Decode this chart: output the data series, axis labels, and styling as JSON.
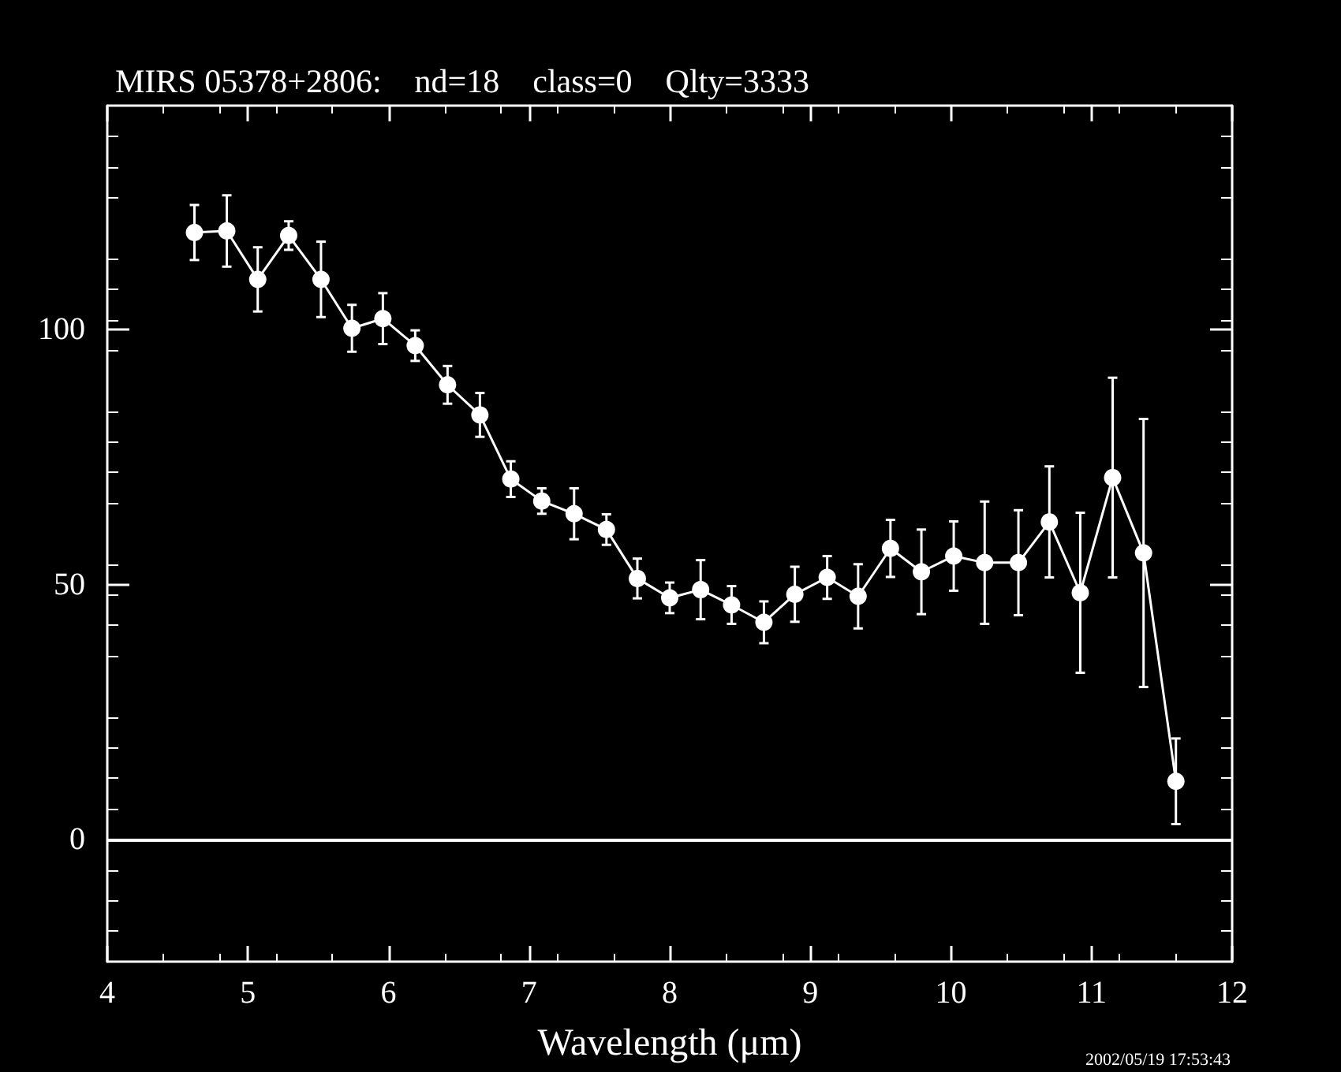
{
  "chart_data": {
    "type": "line",
    "title": "MIRS 05378+2806:    nd=18    class=0    Qlty=3333",
    "xlabel": "Wavelength (μm)",
    "annotations": [
      "2002/05/19 17:53:43"
    ],
    "x": [
      4.62,
      4.85,
      5.07,
      5.29,
      5.52,
      5.74,
      5.96,
      6.19,
      6.42,
      6.65,
      6.87,
      7.09,
      7.32,
      7.55,
      7.77,
      8.0,
      8.22,
      8.44,
      8.67,
      8.89,
      9.12,
      9.34,
      9.57,
      9.79,
      10.02,
      10.24,
      10.48,
      10.7,
      10.92,
      11.15,
      11.37,
      11.6
    ],
    "series": [
      {
        "color": "#ffffff",
        "values": [
          119.1,
          119.4,
          109.9,
          118.5,
          109.9,
          100.3,
          102.2,
          96.9,
          89.2,
          83.3,
          70.7,
          66.4,
          63.9,
          60.8,
          51.2,
          47.4,
          49.0,
          46.0,
          42.6,
          48.1,
          51.4,
          47.7,
          57.1,
          52.5,
          55.6,
          54.3,
          54.3,
          62.3,
          48.4,
          71.0,
          56.2,
          11.4
        ],
        "errors": [
          5.4,
          7,
          6.3,
          2.8,
          7.4,
          4.6,
          5,
          3,
          3.7,
          4.3,
          3.5,
          2.5,
          5,
          3,
          3.9,
          3,
          5.8,
          3.7,
          4.1,
          5.4,
          4.2,
          6.3,
          5.6,
          8.3,
          6.8,
          12,
          10.3,
          10.9,
          15.7,
          19.6,
          26.3,
          8.4
        ]
      }
    ],
    "xlim": [
      4,
      12
    ],
    "xticks": [
      4,
      5,
      6,
      7,
      8,
      9,
      10,
      11,
      12
    ],
    "ylim": [
      -24,
      144
    ],
    "yticks": [
      0,
      50,
      100
    ],
    "ref_lines": [
      {
        "axis": "y",
        "value": 0,
        "color": "#ffffff"
      }
    ],
    "marker": "circle",
    "line_style": "solid"
  }
}
